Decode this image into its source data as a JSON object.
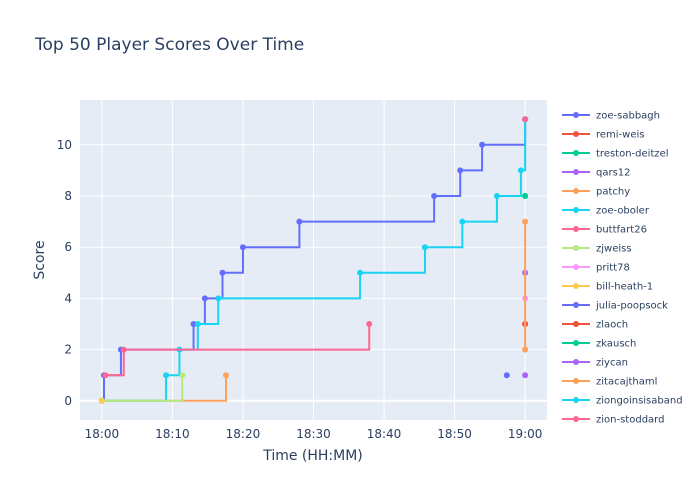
{
  "chart_data": {
    "type": "line",
    "title": "Top 50 Player Scores Over Time",
    "xlabel": "Time (HH:MM)",
    "ylabel": "Score",
    "x_range_minutes": [
      -3.1,
      63.1
    ],
    "ylim": [
      -0.75,
      11.75
    ],
    "x_ticks": [
      {
        "min": 0,
        "label": "18:00"
      },
      {
        "min": 10,
        "label": "18:10"
      },
      {
        "min": 20,
        "label": "18:20"
      },
      {
        "min": 30,
        "label": "18:30"
      },
      {
        "min": 40,
        "label": "18:40"
      },
      {
        "min": 50,
        "label": "18:50"
      },
      {
        "min": 60,
        "label": "19:00"
      }
    ],
    "y_ticks": [
      0,
      2,
      4,
      6,
      8,
      10
    ],
    "grid": true,
    "line_shape": "step",
    "legend_position": "right",
    "series": [
      {
        "name": "zoe-sabbagh",
        "color": "#636efa",
        "points": [
          [
            0,
            0
          ],
          [
            0.3,
            1
          ],
          [
            2.7,
            2
          ],
          [
            13,
            3
          ],
          [
            14.6,
            4
          ],
          [
            17.1,
            5
          ],
          [
            20,
            6
          ],
          [
            28,
            7
          ],
          [
            47.1,
            8
          ],
          [
            50.8,
            9
          ],
          [
            53.9,
            10
          ],
          [
            60,
            11
          ]
        ]
      },
      {
        "name": "remi-weis",
        "color": "#EF553B",
        "points": [
          [
            60,
            3
          ]
        ]
      },
      {
        "name": "treston-deitzel",
        "color": "#00cc96",
        "points": [
          [
            60,
            8
          ]
        ]
      },
      {
        "name": "qars12",
        "color": "#ab63fa",
        "points": [
          [
            60,
            5
          ]
        ]
      },
      {
        "name": "patchy",
        "color": "#FFA15A",
        "points": [
          [
            0,
            0
          ],
          [
            17.6,
            1
          ]
        ]
      },
      {
        "name": "zoe-oboler",
        "color": "#19d3f3",
        "points": [
          [
            0,
            0
          ],
          [
            9.1,
            1
          ],
          [
            11,
            2
          ],
          [
            13.6,
            3
          ],
          [
            16.5,
            4
          ],
          [
            36.6,
            5
          ],
          [
            45.8,
            6
          ],
          [
            51.1,
            7
          ],
          [
            56,
            8
          ],
          [
            59.4,
            9
          ],
          [
            60,
            11
          ]
        ]
      },
      {
        "name": "buttfart26",
        "color": "#FF6692",
        "points": [
          [
            0.5,
            1
          ],
          [
            3.1,
            2
          ],
          [
            37.9,
            3
          ]
        ]
      },
      {
        "name": "zjweiss",
        "color": "#B6E880",
        "points": [
          [
            0,
            0
          ],
          [
            11.4,
            1
          ]
        ]
      },
      {
        "name": "pritt78",
        "color": "#FF97FF",
        "points": [
          [
            60,
            4
          ]
        ]
      },
      {
        "name": "bill-heath-1",
        "color": "#FECB52",
        "points": [
          [
            0,
            0
          ]
        ]
      },
      {
        "name": "julia-poopsock",
        "color": "#636efa",
        "points": [
          [
            57.4,
            1
          ]
        ]
      },
      {
        "name": "zlaoch",
        "color": "#EF553B",
        "points": [
          [
            60,
            3
          ]
        ]
      },
      {
        "name": "zkausch",
        "color": "#00cc96",
        "points": [
          [
            60,
            8
          ]
        ]
      },
      {
        "name": "ziycan",
        "color": "#ab63fa",
        "points": [
          [
            60,
            1
          ]
        ]
      },
      {
        "name": "zitacajthaml",
        "color": "#FFA15A",
        "points": [
          [
            60,
            2
          ],
          [
            60,
            7
          ]
        ]
      },
      {
        "name": "ziongoinsisaband",
        "color": "#19d3f3",
        "points": [
          [
            60,
            11
          ]
        ]
      },
      {
        "name": "zion-stoddard",
        "color": "#FF6692",
        "points": [
          [
            60,
            11
          ]
        ]
      }
    ]
  }
}
